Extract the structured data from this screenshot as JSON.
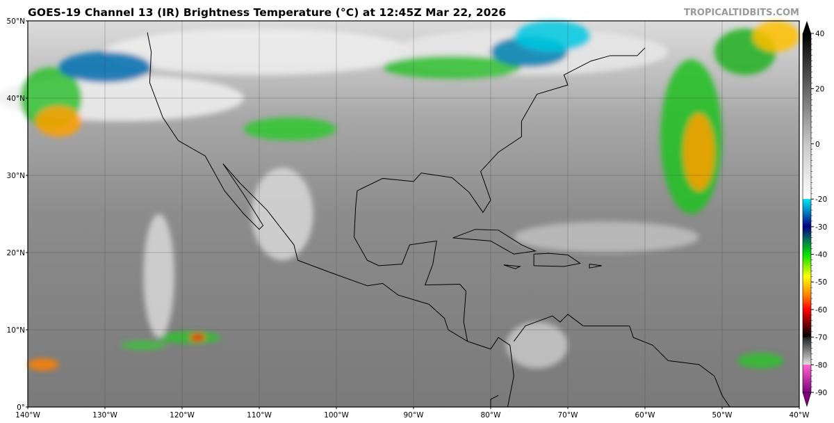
{
  "header": {
    "title": "GOES-19 Channel 13 (IR) Brightness Temperature (°C) at 12:45Z Mar 22, 2026",
    "brand": "TROPICALTIDBITS.COM"
  },
  "map": {
    "projection": "equirectangular",
    "lon_range": [
      -140,
      -40
    ],
    "lat_range": [
      0,
      50
    ],
    "lat_labels": [
      "0°",
      "10°N",
      "20°N",
      "30°N",
      "40°N",
      "50°N"
    ],
    "lon_labels": [
      "140°W",
      "130°W",
      "120°W",
      "110°W",
      "100°W",
      "90°W",
      "80°W",
      "70°W",
      "60°W",
      "50°W",
      "40°W"
    ],
    "grid": true
  },
  "colorbar": {
    "unit": "°C",
    "range": [
      -90,
      40
    ],
    "tick_labels": [
      "40",
      "20",
      "0",
      "-20",
      "-30",
      "-40",
      "-50",
      "-60",
      "-70",
      "-80",
      "-90"
    ],
    "tick_values": [
      40,
      20,
      0,
      -20,
      -30,
      -40,
      -50,
      -60,
      -70,
      -80,
      -90
    ],
    "stops": [
      {
        "v": 40,
        "c": "#000000"
      },
      {
        "v": 0,
        "c": "#c8c8c8"
      },
      {
        "v": -19.9,
        "c": "#ffffff"
      },
      {
        "v": -20,
        "c": "#00e8f0"
      },
      {
        "v": -26,
        "c": "#0060b0"
      },
      {
        "v": -30,
        "c": "#000080"
      },
      {
        "v": -34,
        "c": "#006060"
      },
      {
        "v": -40,
        "c": "#00e000"
      },
      {
        "v": -48,
        "c": "#ffff00"
      },
      {
        "v": -55,
        "c": "#ff8000"
      },
      {
        "v": -60,
        "c": "#ff0000"
      },
      {
        "v": -66,
        "c": "#600000"
      },
      {
        "v": -69.9,
        "c": "#000000"
      },
      {
        "v": -70,
        "c": "#202020"
      },
      {
        "v": -79.9,
        "c": "#e0e0e0"
      },
      {
        "v": -80,
        "c": "#ff66cc"
      },
      {
        "v": -90,
        "c": "#800080"
      }
    ]
  }
}
